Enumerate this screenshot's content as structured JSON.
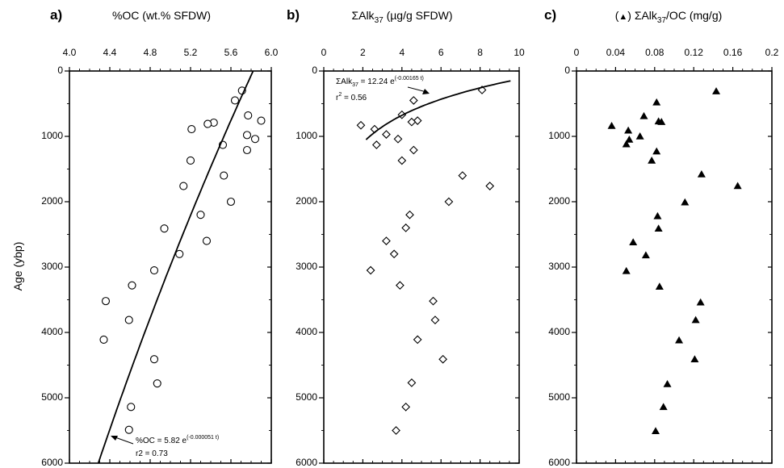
{
  "chart_data": [
    {
      "type": "scatter",
      "panel_label": "a)",
      "title": "%OC (wt.% SFDW)",
      "xlabel": "%OC (wt.% SFDW)",
      "ylabel": "Age (ybp)",
      "x_axis_position": "top",
      "y_inverted": true,
      "xlim": [
        4.0,
        6.0
      ],
      "ylim": [
        0,
        6000
      ],
      "xticks": [
        "4.0",
        "4.4",
        "4.8",
        "5.2",
        "5.6",
        "6.0"
      ],
      "yticks": [
        "0",
        "1000",
        "2000",
        "3000",
        "4000",
        "5000",
        "6000"
      ],
      "marker": "open-circle",
      "series": [
        {
          "x": [
            5.71,
            5.64,
            5.77,
            5.43,
            5.37,
            5.9,
            5.21,
            5.76,
            5.84,
            5.52,
            5.76,
            5.2,
            5.53,
            5.13,
            5.6,
            5.3,
            4.94,
            5.36,
            5.09,
            4.84,
            4.62,
            4.36,
            4.59,
            4.34,
            4.84,
            4.87,
            4.61,
            4.59
          ],
          "y": [
            300,
            450,
            680,
            790,
            810,
            760,
            890,
            980,
            1040,
            1130,
            1210,
            1370,
            1600,
            1760,
            2000,
            2200,
            2410,
            2600,
            2800,
            3050,
            3280,
            3520,
            3810,
            4110,
            4410,
            4780,
            5140,
            5490
          ]
        }
      ],
      "fit": {
        "equation": "%OC = 5.82 e",
        "exponent": "(-0.000051 t)",
        "r2": "r2 = 0.73",
        "a": 5.82,
        "b": -5.1e-05
      }
    },
    {
      "type": "scatter",
      "panel_label": "b)",
      "title": "ΣAlk37 (µg/g SFDW)",
      "xlabel_main": "ΣAlk",
      "xlabel_sub": "37",
      "xlabel_rest": " (µg/g SFDW)",
      "x_axis_position": "top",
      "y_inverted": true,
      "xlim": [
        0,
        10
      ],
      "ylim": [
        0,
        6000
      ],
      "xticks": [
        "0",
        "2",
        "4",
        "6",
        "8",
        "10"
      ],
      "yticks": [
        "0",
        "1000",
        "2000",
        "3000",
        "4000",
        "5000",
        "6000"
      ],
      "marker": "open-diamond",
      "series": [
        {
          "x": [
            8.1,
            4.6,
            4.0,
            4.8,
            4.5,
            1.9,
            2.6,
            3.2,
            3.8,
            4.6,
            2.7,
            4.0,
            7.1,
            8.5,
            6.4,
            4.4,
            4.2,
            3.2,
            3.6,
            2.4,
            3.9,
            5.6,
            5.7,
            4.8,
            6.1,
            4.5,
            4.2,
            3.7
          ],
          "y": [
            290,
            450,
            670,
            760,
            780,
            830,
            890,
            970,
            1040,
            1210,
            1130,
            1370,
            1600,
            1760,
            2000,
            2200,
            2400,
            2600,
            2800,
            3050,
            3280,
            3520,
            3810,
            4110,
            4410,
            4770,
            5140,
            5500
          ]
        }
      ],
      "fit": {
        "equation_main": "ΣAlk",
        "equation_sub": "37",
        "equation_rest": " = 12.24 e",
        "exponent": "(-0.00165 t)",
        "r2_main": "r",
        "r2_sup": "2",
        "r2_rest": " = 0.56",
        "a": 12.24,
        "b": -0.00165
      }
    },
    {
      "type": "scatter",
      "panel_label": "c)",
      "title": "(▲) ΣAlk37/OC (mg/g)",
      "xlabel_prefix": "(",
      "xlabel_marker": "▲",
      "xlabel_main": ") ΣAlk",
      "xlabel_sub": "37",
      "xlabel_rest": "/OC (mg/g)",
      "x_axis_position": "top",
      "y_inverted": true,
      "xlim": [
        0,
        0.2
      ],
      "ylim": [
        0,
        6000
      ],
      "xticks": [
        "0",
        "0.04",
        "0.08",
        "0.12",
        "0.16",
        "0.2"
      ],
      "yticks": [
        "0",
        "1000",
        "2000",
        "3000",
        "4000",
        "5000",
        "6000"
      ],
      "marker": "filled-triangle",
      "series": [
        {
          "x": [
            0.143,
            0.082,
            0.084,
            0.087,
            0.069,
            0.036,
            0.053,
            0.065,
            0.054,
            0.051,
            0.082,
            0.077,
            0.128,
            0.165,
            0.111,
            0.083,
            0.084,
            0.058,
            0.071,
            0.051,
            0.085,
            0.127,
            0.122,
            0.105,
            0.121,
            0.093,
            0.089,
            0.081
          ],
          "y": [
            310,
            480,
            770,
            780,
            690,
            840,
            910,
            1000,
            1050,
            1120,
            1230,
            1370,
            1580,
            1760,
            2010,
            2220,
            2410,
            2620,
            2820,
            3060,
            3300,
            3540,
            3810,
            4120,
            4410,
            4790,
            5140,
            5510
          ]
        }
      ]
    }
  ],
  "axes": {
    "age_label": "Age (ybp)"
  }
}
